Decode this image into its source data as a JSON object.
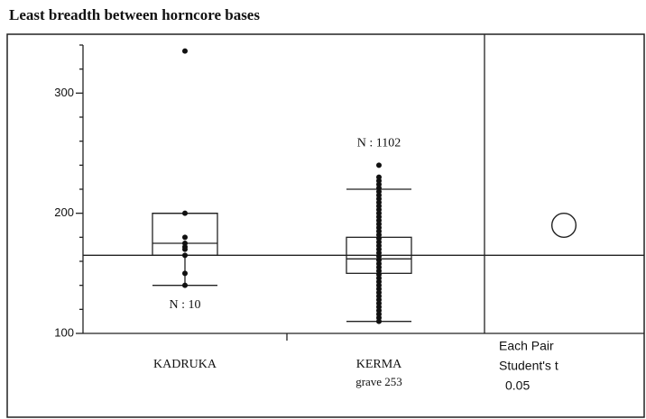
{
  "chart_data": {
    "type": "box",
    "title": "Least breadth between horncore bases",
    "categories": [
      "KADRUKA",
      "KERMA"
    ],
    "category_sublabels": [
      null,
      "grave 253"
    ],
    "ylim": [
      100,
      340
    ],
    "yticks": [
      100,
      200,
      300
    ],
    "yminorticks": [
      120,
      140,
      160,
      180,
      220,
      240,
      260,
      280,
      320,
      340
    ],
    "mean_line": 165,
    "boxes": [
      {
        "n_label": "N : 10",
        "low": 140,
        "q1": 165,
        "median": 175,
        "q3": 200,
        "high": 200,
        "points": [
          335,
          200,
          180,
          175,
          172,
          170,
          165,
          150,
          140
        ]
      },
      {
        "n_label": "N : 1102",
        "low": 110,
        "q1": 150,
        "median": 162,
        "q3": 180,
        "high": 220,
        "points": [
          110,
          113,
          116,
          119,
          122,
          125,
          128,
          131,
          134,
          137,
          140,
          143,
          146,
          149,
          152,
          155,
          158,
          161,
          164,
          167,
          170,
          173,
          176,
          179,
          182,
          185,
          188,
          191,
          194,
          197,
          200,
          203,
          206,
          209,
          212,
          215,
          218,
          221,
          224,
          227,
          230,
          240
        ]
      }
    ],
    "comparison": {
      "label_lines": [
        "Each Pair",
        "Student's t",
        "0.05"
      ],
      "circle_center": 190,
      "circle_radius": 10
    }
  }
}
